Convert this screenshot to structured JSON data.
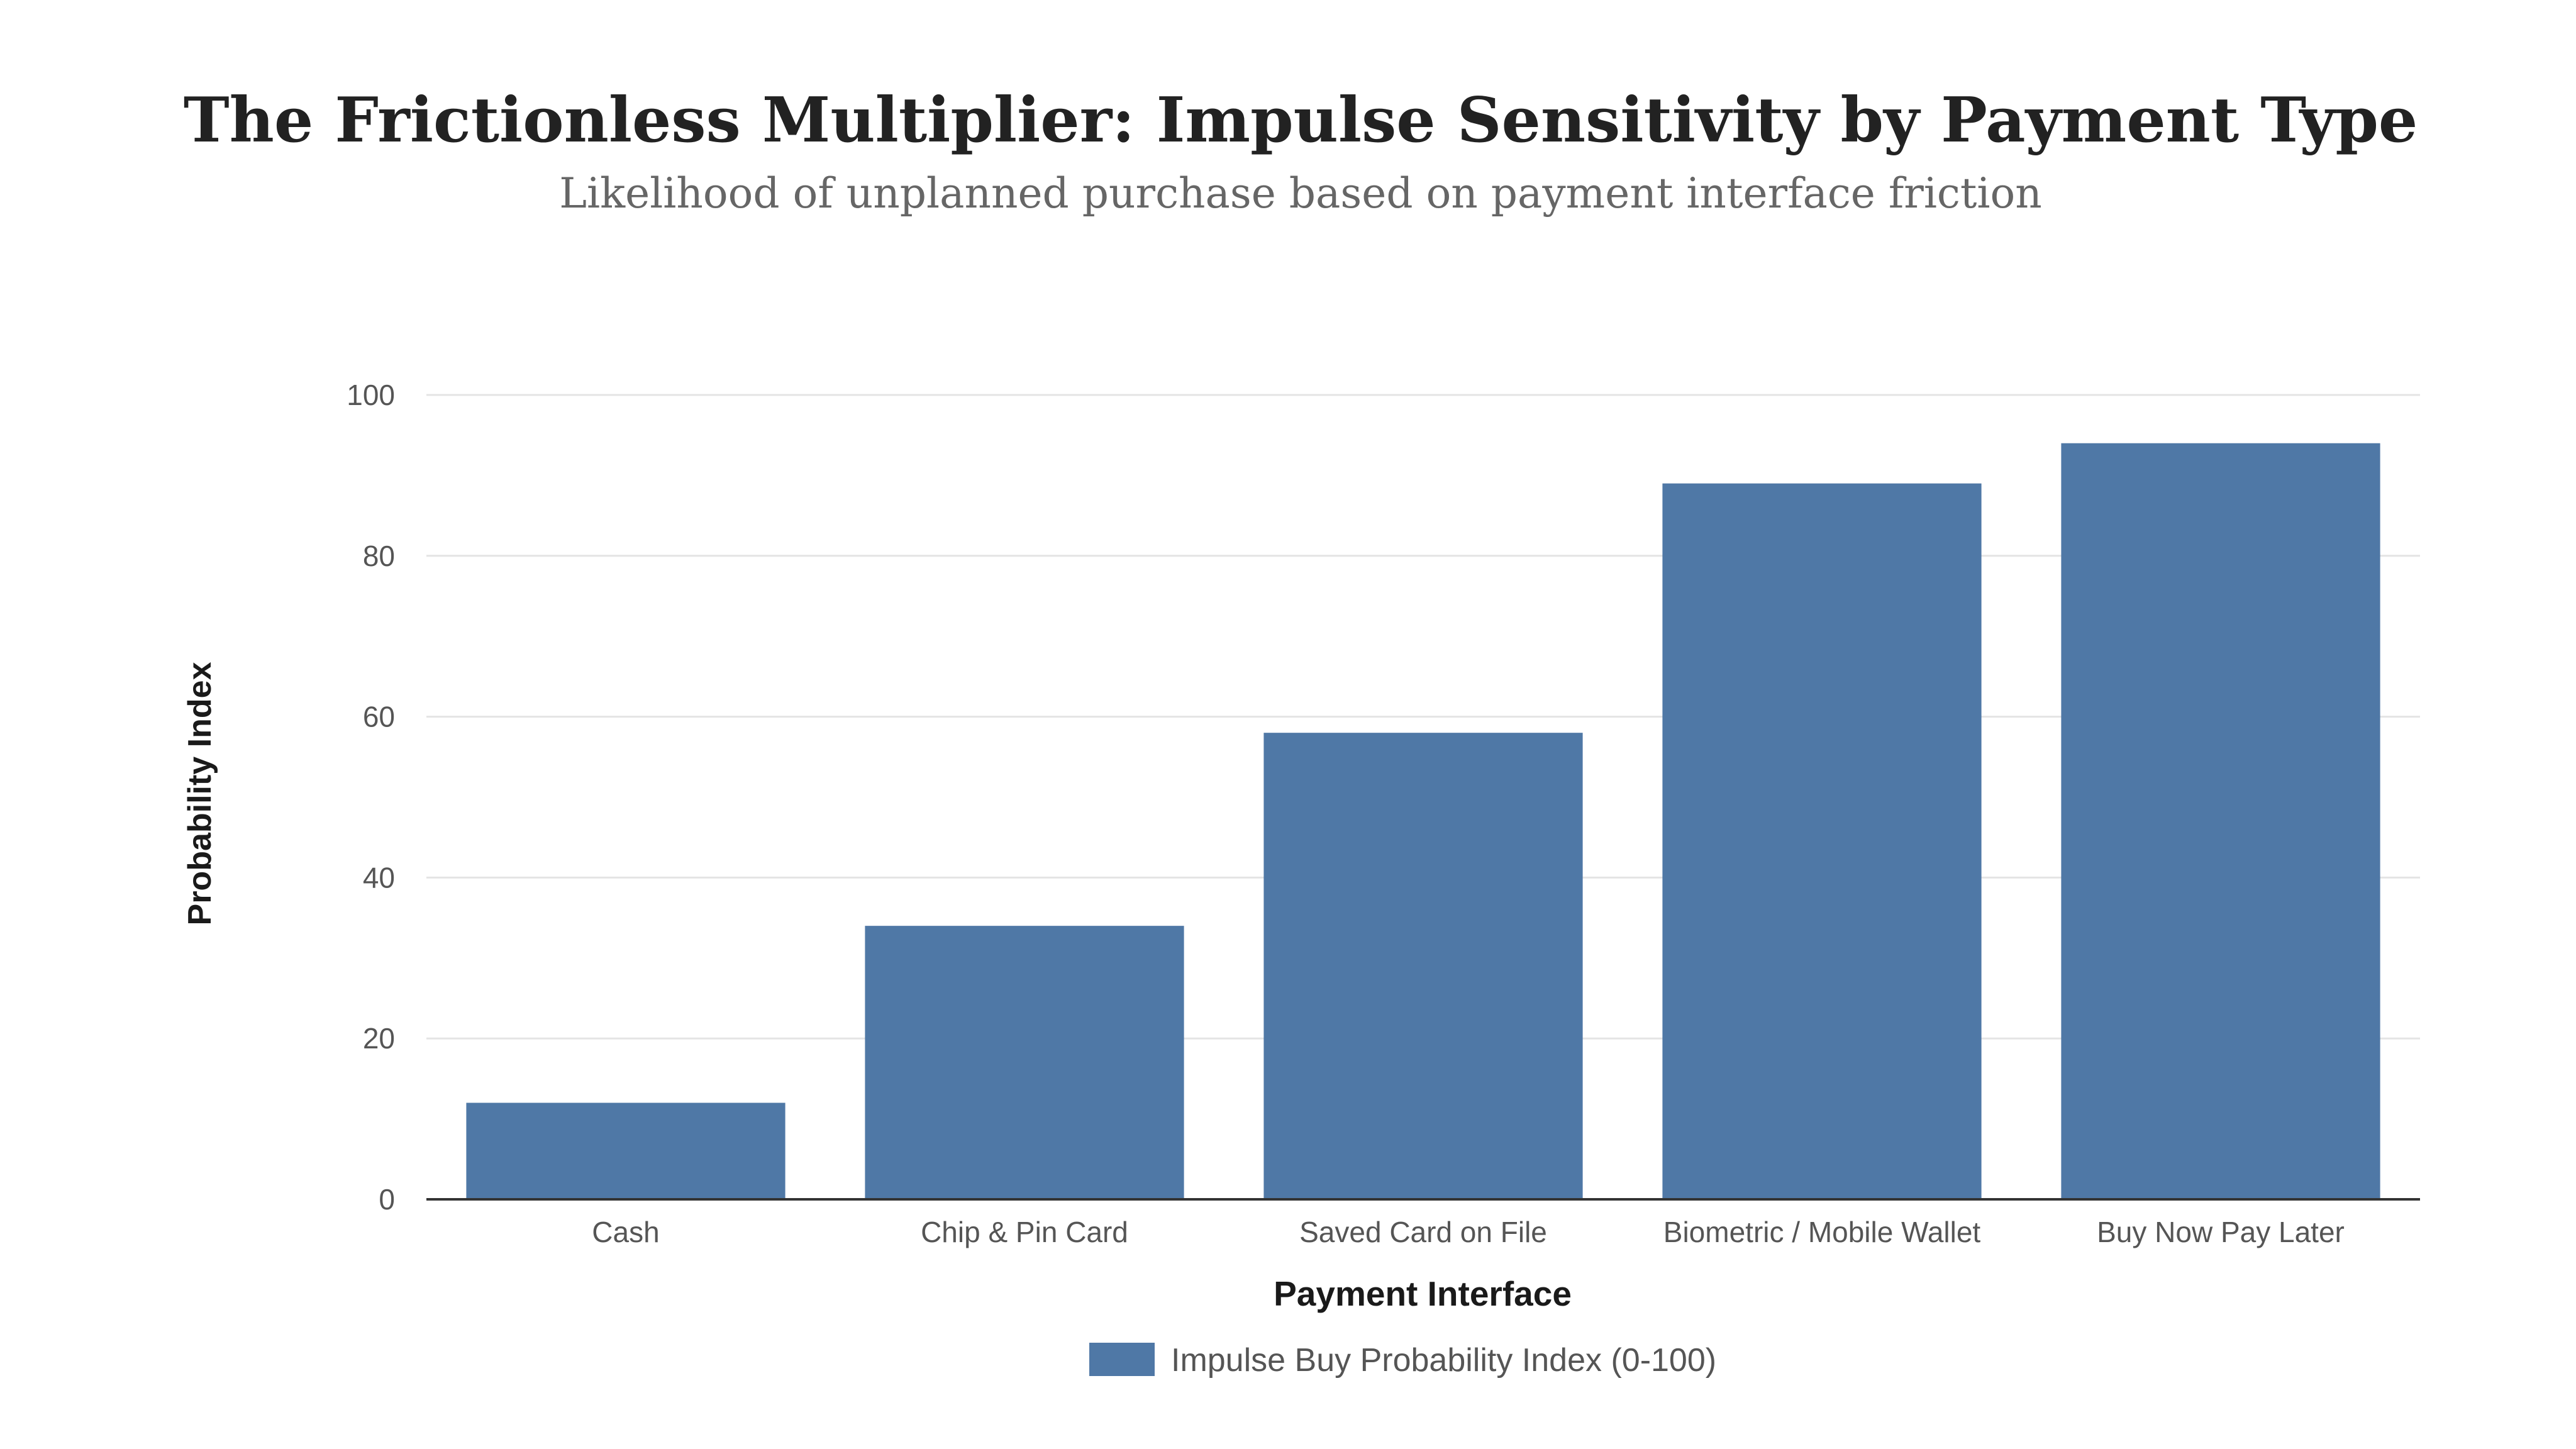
{
  "chart_data": {
    "type": "bar",
    "title": "The Frictionless Multiplier: Impulse Sensitivity by Payment Type",
    "subtitle": "Likelihood of unplanned purchase based on payment interface friction",
    "xlabel": "Payment Interface",
    "ylabel": "Probability Index",
    "categories": [
      "Cash",
      "Chip & Pin Card",
      "Saved Card on File",
      "Biometric / Mobile Wallet",
      "Buy Now Pay Later"
    ],
    "series": [
      {
        "name": "Impulse Buy Probability Index (0-100)",
        "values": [
          12,
          34,
          58,
          89,
          94
        ],
        "color": "#4f78a6"
      }
    ],
    "ylim": [
      0,
      100
    ],
    "yticks": [
      "0",
      "20",
      "40",
      "60",
      "80",
      "100"
    ],
    "grid": true,
    "legend_position": "bottom-center"
  }
}
